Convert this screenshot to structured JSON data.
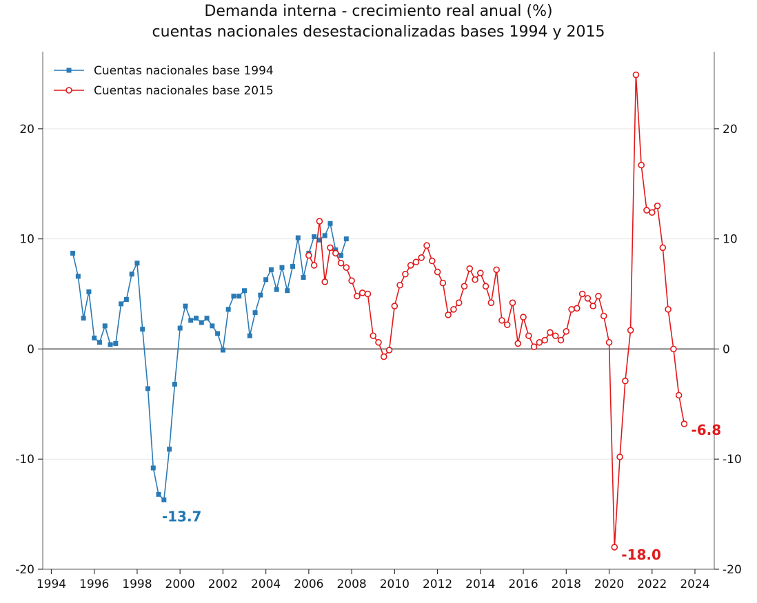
{
  "title_line1": "Demanda interna - crecimiento real anual (%)",
  "title_line2": "cuentas nacionales desestacionalizadas bases 1994 y 2015",
  "chart_data": {
    "type": "line",
    "title": "Demanda interna - crecimiento real anual (%) cuentas nacionales desestacionalizadas bases 1994 y 2015",
    "xlabel": "",
    "ylabel": "",
    "xlim": [
      1993.6,
      2024.9
    ],
    "ylim": [
      -20,
      27
    ],
    "x_ticks": [
      1994,
      1996,
      1998,
      2000,
      2002,
      2004,
      2006,
      2008,
      2010,
      2012,
      2014,
      2016,
      2018,
      2020,
      2022,
      2024
    ],
    "x_tick_labels": [
      "1994",
      "1996",
      "1998",
      "2000",
      "2002",
      "2004",
      "2006",
      "2008",
      "2010",
      "2012",
      "2014",
      "2016",
      "2018",
      "2020",
      "2022",
      "2024"
    ],
    "y_ticks": [
      -20,
      -10,
      0,
      10,
      20
    ],
    "y_tick_labels": [
      "-20",
      "-10",
      "0",
      "10",
      "20"
    ],
    "grid": "horizontal",
    "legend_position": "top-left",
    "zero_line": true,
    "series": [
      {
        "name": "Cuentas nacionales base 1994",
        "color": "#2a7ab5",
        "marker": "square",
        "x": [
          1995.0,
          1995.25,
          1995.5,
          1995.75,
          1996.0,
          1996.25,
          1996.5,
          1996.75,
          1997.0,
          1997.25,
          1997.5,
          1997.75,
          1998.0,
          1998.25,
          1998.5,
          1998.75,
          1999.0,
          1999.25,
          1999.5,
          1999.75,
          2000.0,
          2000.25,
          2000.5,
          2000.75,
          2001.0,
          2001.25,
          2001.5,
          2001.75,
          2002.0,
          2002.25,
          2002.5,
          2002.75,
          2003.0,
          2003.25,
          2003.5,
          2003.75,
          2004.0,
          2004.25,
          2004.5,
          2004.75,
          2005.0,
          2005.25,
          2005.5,
          2005.75,
          2006.0,
          2006.25,
          2006.5,
          2006.75,
          2007.0,
          2007.25,
          2007.5,
          2007.75
        ],
        "values": [
          8.7,
          6.6,
          2.8,
          5.2,
          1.0,
          0.6,
          2.1,
          0.4,
          0.5,
          4.1,
          4.5,
          6.8,
          7.8,
          1.8,
          -3.6,
          -10.8,
          -13.2,
          -13.7,
          -9.1,
          -3.2,
          1.9,
          3.9,
          2.6,
          2.8,
          2.4,
          2.8,
          2.1,
          1.4,
          -0.1,
          3.6,
          4.8,
          4.8,
          5.3,
          1.2,
          3.3,
          4.9,
          6.3,
          7.2,
          5.4,
          7.4,
          5.3,
          7.5,
          10.1,
          6.5,
          8.7,
          10.2,
          9.9,
          10.3,
          11.4,
          9.0,
          8.5,
          10.0
        ]
      },
      {
        "name": "Cuentas nacionales base 2015",
        "color": "#e0191b",
        "marker": "circle",
        "x": [
          2006.0,
          2006.25,
          2006.5,
          2006.75,
          2007.0,
          2007.25,
          2007.5,
          2007.75,
          2008.0,
          2008.25,
          2008.5,
          2008.75,
          2009.0,
          2009.25,
          2009.5,
          2009.75,
          2010.0,
          2010.25,
          2010.5,
          2010.75,
          2011.0,
          2011.25,
          2011.5,
          2011.75,
          2012.0,
          2012.25,
          2012.5,
          2012.75,
          2013.0,
          2013.25,
          2013.5,
          2013.75,
          2014.0,
          2014.25,
          2014.5,
          2014.75,
          2015.0,
          2015.25,
          2015.5,
          2015.75,
          2016.0,
          2016.25,
          2016.5,
          2016.75,
          2017.0,
          2017.25,
          2017.5,
          2017.75,
          2018.0,
          2018.25,
          2018.5,
          2018.75,
          2019.0,
          2019.25,
          2019.5,
          2019.75,
          2020.0,
          2020.25,
          2020.5,
          2020.75,
          2021.0,
          2021.25,
          2021.5,
          2021.75,
          2022.0,
          2022.25,
          2022.5,
          2022.75,
          2023.0,
          2023.25,
          2023.5
        ],
        "values": [
          8.5,
          7.6,
          11.6,
          6.1,
          9.2,
          8.7,
          7.8,
          7.4,
          6.2,
          4.8,
          5.1,
          5.0,
          1.2,
          0.6,
          -0.7,
          -0.1,
          3.9,
          5.8,
          6.8,
          7.6,
          7.9,
          8.3,
          9.4,
          8.0,
          7.0,
          6.0,
          3.1,
          3.6,
          4.2,
          5.7,
          7.3,
          6.3,
          6.9,
          5.7,
          4.2,
          7.2,
          2.6,
          2.2,
          4.2,
          0.5,
          2.9,
          1.2,
          0.2,
          0.6,
          0.8,
          1.5,
          1.2,
          0.8,
          1.6,
          3.6,
          3.7,
          5.0,
          4.6,
          3.9,
          4.8,
          3.0,
          0.6,
          -18.0,
          -9.8,
          -2.9,
          1.7,
          24.9,
          16.7,
          12.6,
          12.4,
          13.0,
          9.2,
          3.6,
          0.0,
          -4.2,
          -6.8
        ]
      }
    ],
    "annotations": [
      {
        "text": "-13.7",
        "x": 1999.25,
        "y": -13.7,
        "color": "#1f77b4"
      },
      {
        "text": "-18.0",
        "x": 2020.25,
        "y": -18.0,
        "color": "#e0191b"
      },
      {
        "text": "-6.8",
        "x": 2023.5,
        "y": -6.8,
        "color": "#e0191b"
      }
    ]
  }
}
